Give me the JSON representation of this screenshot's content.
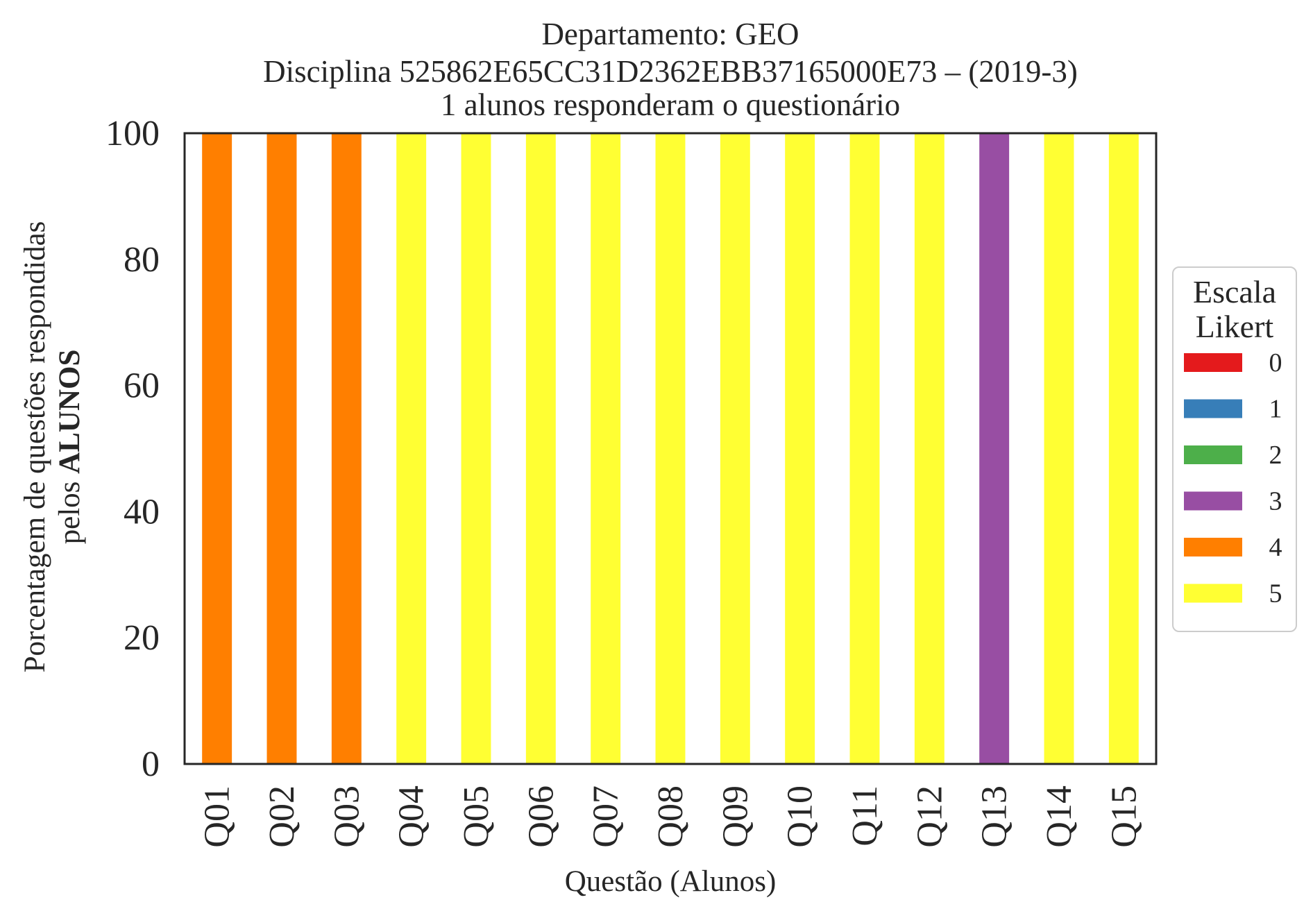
{
  "chart_data": {
    "type": "bar",
    "stacked": true,
    "title_lines": [
      "Departamento: GEO",
      "Disciplina 525862E65CC31D2362EBB37165000E73 – (2019-3)",
      "1 alunos responderam o questionário"
    ],
    "xlabel": "Questão (Alunos)",
    "ylabel_line1": "Porcentagem de questões respondidas",
    "ylabel_line2_prefix": "pelos ",
    "ylabel_line2_bold": "ALUNOS",
    "ylim": [
      0,
      100
    ],
    "yticks": [
      "0",
      "20",
      "40",
      "60",
      "80",
      "100"
    ],
    "grid": false,
    "legend_position": "center-right-outside",
    "legend_title_lines": [
      "Escala",
      "Likert"
    ],
    "categories": [
      "Q01",
      "Q02",
      "Q03",
      "Q04",
      "Q05",
      "Q06",
      "Q07",
      "Q08",
      "Q09",
      "Q10",
      "Q11",
      "Q12",
      "Q13",
      "Q14",
      "Q15"
    ],
    "series": [
      {
        "name": "0",
        "color": "#e41a1c",
        "values": [
          0,
          0,
          0,
          0,
          0,
          0,
          0,
          0,
          0,
          0,
          0,
          0,
          0,
          0,
          0
        ]
      },
      {
        "name": "1",
        "color": "#377eb8",
        "values": [
          0,
          0,
          0,
          0,
          0,
          0,
          0,
          0,
          0,
          0,
          0,
          0,
          0,
          0,
          0
        ]
      },
      {
        "name": "2",
        "color": "#4daf4a",
        "values": [
          0,
          0,
          0,
          0,
          0,
          0,
          0,
          0,
          0,
          0,
          0,
          0,
          0,
          0,
          0
        ]
      },
      {
        "name": "3",
        "color": "#984ea3",
        "values": [
          0,
          0,
          0,
          0,
          0,
          0,
          0,
          0,
          0,
          0,
          0,
          0,
          100,
          0,
          0
        ]
      },
      {
        "name": "4",
        "color": "#ff7f00",
        "values": [
          100,
          100,
          100,
          0,
          0,
          0,
          0,
          0,
          0,
          0,
          0,
          0,
          0,
          0,
          0
        ]
      },
      {
        "name": "5",
        "color": "#ffff33",
        "values": [
          0,
          0,
          0,
          100,
          100,
          100,
          100,
          100,
          100,
          100,
          100,
          100,
          0,
          100,
          100
        ]
      }
    ]
  }
}
